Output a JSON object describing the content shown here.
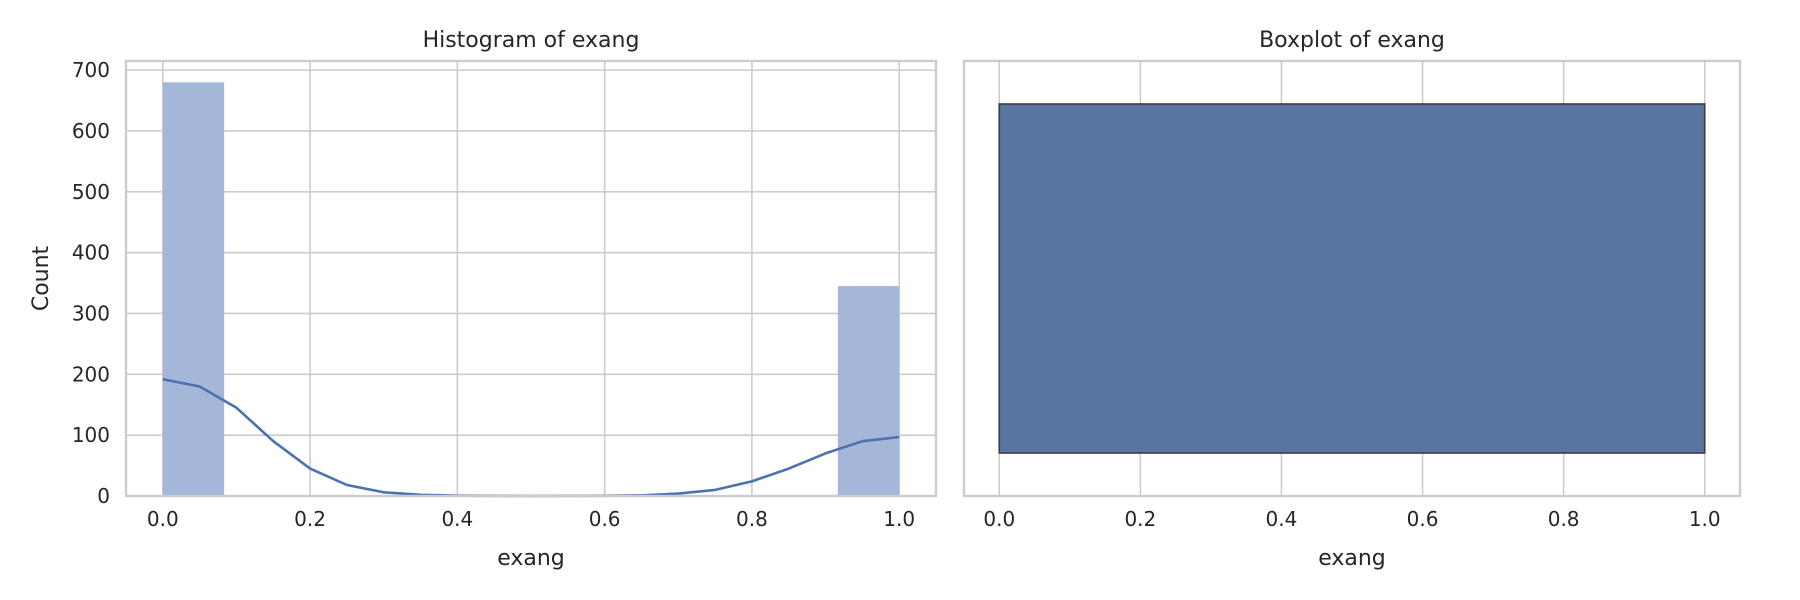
{
  "chart_data": [
    {
      "type": "histogram",
      "title": "Histogram of exang",
      "xlabel": "exang",
      "ylabel": "Count",
      "xlim": [
        -0.05,
        1.05
      ],
      "ylim": [
        0,
        715
      ],
      "xticks": [
        0.0,
        0.2,
        0.4,
        0.6,
        0.8,
        1.0
      ],
      "xtick_labels": [
        "0.0",
        "0.2",
        "0.4",
        "0.6",
        "0.8",
        "1.0"
      ],
      "yticks": [
        0,
        100,
        200,
        300,
        400,
        500,
        600,
        700
      ],
      "ytick_labels": [
        "0",
        "100",
        "200",
        "300",
        "400",
        "500",
        "600",
        "700"
      ],
      "grid": true,
      "bins": [
        {
          "x0": 0.0,
          "x1": 0.0833,
          "count": 680
        },
        {
          "x0": 0.9167,
          "x1": 1.0,
          "count": 345
        }
      ],
      "kde": {
        "x": [
          0.0,
          0.05,
          0.1,
          0.15,
          0.2,
          0.25,
          0.3,
          0.35,
          0.4,
          0.5,
          0.6,
          0.65,
          0.7,
          0.75,
          0.8,
          0.85,
          0.9,
          0.95,
          1.0
        ],
        "y": [
          192,
          180,
          145,
          90,
          45,
          18,
          6,
          2,
          0.5,
          0,
          0.3,
          1,
          4,
          10,
          24,
          45,
          70,
          90,
          97
        ]
      },
      "bar_color": "#a5b7d8",
      "line_color": "#4c72b0"
    },
    {
      "type": "boxplot",
      "title": "Boxplot of exang",
      "xlabel": "exang",
      "xlim": [
        -0.05,
        1.05
      ],
      "xticks": [
        0.0,
        0.2,
        0.4,
        0.6,
        0.8,
        1.0
      ],
      "xtick_labels": [
        "0.0",
        "0.2",
        "0.4",
        "0.6",
        "0.8",
        "1.0"
      ],
      "grid": true,
      "box": {
        "min": 0.0,
        "q1": 0.0,
        "median": 0.0,
        "q3": 1.0,
        "max": 1.0
      },
      "box_color": "#5975a4",
      "edge_color": "#3d3d3d"
    }
  ]
}
